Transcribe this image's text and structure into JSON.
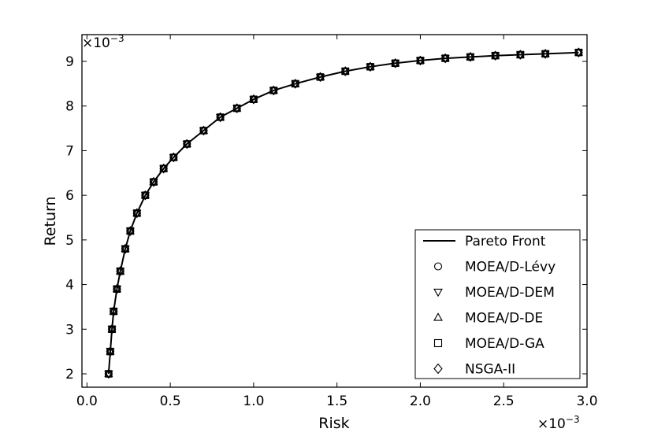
{
  "chart_data": {
    "type": "scatter",
    "xlabel": "Risk",
    "ylabel": "Return",
    "x_multiplier": "×10",
    "x_multiplier_exp": "−3",
    "y_multiplier": "×10",
    "y_multiplier_exp": "−3",
    "xlim": [
      -0.03,
      3.0
    ],
    "ylim": [
      1.7,
      9.6
    ],
    "xticks": [
      {
        "value": 0.0,
        "label": "0.0"
      },
      {
        "value": 0.5,
        "label": "0.5"
      },
      {
        "value": 1.0,
        "label": "1.0"
      },
      {
        "value": 1.5,
        "label": "1.5"
      },
      {
        "value": 2.0,
        "label": "2.0"
      },
      {
        "value": 2.5,
        "label": "2.5"
      },
      {
        "value": 3.0,
        "label": "3.0"
      }
    ],
    "yticks": [
      {
        "value": 2,
        "label": "2"
      },
      {
        "value": 3,
        "label": "3"
      },
      {
        "value": 4,
        "label": "4"
      },
      {
        "value": 5,
        "label": "5"
      },
      {
        "value": 6,
        "label": "6"
      },
      {
        "value": 7,
        "label": "7"
      },
      {
        "value": 8,
        "label": "8"
      },
      {
        "value": 9,
        "label": "9"
      }
    ],
    "legend_position": "lower-right",
    "x": [
      0.13,
      0.14,
      0.15,
      0.16,
      0.18,
      0.2,
      0.23,
      0.26,
      0.3,
      0.35,
      0.4,
      0.46,
      0.52,
      0.6,
      0.7,
      0.8,
      0.9,
      1.0,
      1.12,
      1.25,
      1.4,
      1.55,
      1.7,
      1.85,
      2.0,
      2.15,
      2.3,
      2.45,
      2.6,
      2.75,
      2.95
    ],
    "series": [
      {
        "name": "Pareto Front",
        "marker": "line",
        "y": [
          2.0,
          2.5,
          3.0,
          3.4,
          3.9,
          4.3,
          4.8,
          5.2,
          5.6,
          6.0,
          6.3,
          6.6,
          6.85,
          7.15,
          7.45,
          7.75,
          7.95,
          8.15,
          8.35,
          8.5,
          8.65,
          8.78,
          8.88,
          8.96,
          9.02,
          9.07,
          9.1,
          9.13,
          9.15,
          9.17,
          9.2
        ]
      },
      {
        "name": "MOEA/D-Lévy",
        "marker": "circle",
        "y": [
          2.0,
          2.5,
          3.0,
          3.4,
          3.9,
          4.3,
          4.8,
          5.2,
          5.6,
          6.0,
          6.3,
          6.6,
          6.85,
          7.15,
          7.45,
          7.75,
          7.95,
          8.15,
          8.35,
          8.5,
          8.65,
          8.78,
          8.88,
          8.96,
          9.02,
          9.07,
          9.1,
          9.13,
          9.15,
          9.17,
          9.2
        ]
      },
      {
        "name": "MOEA/D-DEM",
        "marker": "triangle-down",
        "y": [
          2.0,
          2.5,
          3.0,
          3.4,
          3.9,
          4.3,
          4.8,
          5.2,
          5.6,
          6.0,
          6.3,
          6.6,
          6.85,
          7.15,
          7.45,
          7.75,
          7.95,
          8.15,
          8.35,
          8.5,
          8.65,
          8.78,
          8.88,
          8.96,
          9.02,
          9.07,
          9.1,
          9.13,
          9.15,
          9.17,
          9.2
        ]
      },
      {
        "name": "MOEA/D-DE",
        "marker": "triangle-up",
        "y": [
          2.0,
          2.5,
          3.0,
          3.4,
          3.9,
          4.3,
          4.8,
          5.2,
          5.6,
          6.0,
          6.3,
          6.6,
          6.85,
          7.15,
          7.45,
          7.75,
          7.95,
          8.15,
          8.35,
          8.5,
          8.65,
          8.78,
          8.88,
          8.96,
          9.02,
          9.07,
          9.1,
          9.13,
          9.15,
          9.17,
          9.2
        ]
      },
      {
        "name": "MOEA/D-GA",
        "marker": "square",
        "y": [
          2.0,
          2.5,
          3.0,
          3.4,
          3.9,
          4.3,
          4.8,
          5.2,
          5.6,
          6.0,
          6.3,
          6.6,
          6.85,
          7.15,
          7.45,
          7.75,
          7.95,
          8.15,
          8.35,
          8.5,
          8.65,
          8.78,
          8.88,
          8.96,
          9.02,
          9.07,
          9.1,
          9.13,
          9.15,
          9.17,
          9.2
        ]
      },
      {
        "name": "NSGA-II",
        "marker": "diamond",
        "y": [
          2.0,
          2.5,
          3.0,
          3.4,
          3.9,
          4.3,
          4.8,
          5.2,
          5.6,
          6.0,
          6.3,
          6.6,
          6.85,
          7.15,
          7.45,
          7.75,
          7.95,
          8.15,
          8.35,
          8.5,
          8.65,
          8.78,
          8.88,
          8.96,
          9.02,
          9.07,
          9.1,
          9.13,
          9.15,
          9.17,
          9.2
        ]
      }
    ]
  }
}
